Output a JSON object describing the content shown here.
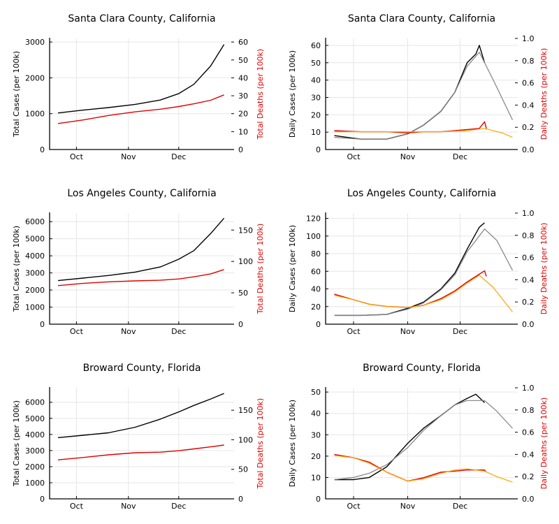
{
  "chart_data": [
    {
      "type": "line",
      "title": "Santa Clara County, California",
      "ylabel": "Total Cases (per 100k)",
      "ylabel2": "Total Deaths (per 100k)",
      "x_ticks": [
        "Oct",
        "Nov",
        "Dec"
      ],
      "y_ticks": [
        "0",
        "1000",
        "2000",
        "3000"
      ],
      "y2_ticks": [
        "0",
        "10",
        "20",
        "30",
        "40",
        "50",
        "60"
      ],
      "ylim": [
        0,
        3100
      ],
      "y2lim": [
        0,
        62
      ],
      "grid": true,
      "series": [
        {
          "axis": "left",
          "color": "#000000",
          "x": [
            "2020-09-20",
            "2020-10-05",
            "2020-10-20",
            "2020-11-05",
            "2020-11-20",
            "2020-12-01",
            "2020-12-10",
            "2020-12-20",
            "2020-12-28"
          ],
          "values": [
            1020,
            1100,
            1170,
            1260,
            1380,
            1560,
            1820,
            2330,
            2930
          ]
        },
        {
          "axis": "right",
          "color": "#e00000",
          "x": [
            "2020-09-20",
            "2020-10-05",
            "2020-10-20",
            "2020-11-05",
            "2020-11-20",
            "2020-12-01",
            "2020-12-10",
            "2020-12-20",
            "2020-12-28"
          ],
          "values": [
            14.5,
            16.5,
            19,
            21,
            22.5,
            24,
            25.5,
            27.5,
            30.5
          ]
        }
      ]
    },
    {
      "type": "line",
      "title": "Santa Clara County, California",
      "ylabel": "Daily Cases (per 100k)",
      "ylabel2": "Daily Deaths (per 100k)",
      "x_ticks": [
        "Oct",
        "Nov",
        "Dec"
      ],
      "y_ticks": [
        "0",
        "10",
        "20",
        "30",
        "40",
        "50",
        "60"
      ],
      "y2_ticks": [
        "0.0",
        "0.2",
        "0.4",
        "0.6",
        "0.8",
        "1.0"
      ],
      "ylim": [
        0,
        64
      ],
      "y2lim": [
        0,
        1.0
      ],
      "grid": true,
      "series": [
        {
          "axis": "left",
          "color": "#000000",
          "x": [
            "2020-09-20",
            "2020-10-05",
            "2020-10-20",
            "2020-11-01",
            "2020-11-10",
            "2020-11-20",
            "2020-11-28",
            "2020-12-05",
            "2020-12-10",
            "2020-12-12",
            "2020-12-15"
          ],
          "values": [
            8,
            6,
            6,
            9,
            14,
            22,
            33,
            50,
            55,
            60,
            50
          ]
        },
        {
          "axis": "left",
          "color": "#808080",
          "x": [
            "2020-09-20",
            "2020-10-05",
            "2020-10-20",
            "2020-11-01",
            "2020-11-10",
            "2020-11-20",
            "2020-11-28",
            "2020-12-05",
            "2020-12-12",
            "2020-12-20",
            "2020-12-31"
          ],
          "values": [
            7,
            6,
            6,
            9,
            14,
            22,
            33,
            48,
            56,
            40,
            17
          ]
        },
        {
          "axis": "right",
          "color": "#e00000",
          "x": [
            "2020-09-20",
            "2020-10-05",
            "2020-10-20",
            "2020-11-01",
            "2020-11-10",
            "2020-11-20",
            "2020-11-28",
            "2020-12-05",
            "2020-12-12",
            "2020-12-15",
            "2020-12-16"
          ],
          "values": [
            0.17,
            0.16,
            0.16,
            0.15,
            0.16,
            0.16,
            0.17,
            0.18,
            0.19,
            0.25,
            0.19
          ]
        },
        {
          "axis": "right",
          "color": "#ffa500",
          "x": [
            "2020-09-20",
            "2020-10-05",
            "2020-10-20",
            "2020-11-01",
            "2020-11-20",
            "2020-12-05",
            "2020-12-15",
            "2020-12-25",
            "2020-12-31"
          ],
          "values": [
            0.16,
            0.16,
            0.16,
            0.16,
            0.16,
            0.17,
            0.19,
            0.15,
            0.11
          ]
        }
      ]
    },
    {
      "type": "line",
      "title": "Los Angeles County, California",
      "ylabel": "Total Cases (per 100k)",
      "ylabel2": "Total Deaths (per 100k)",
      "x_ticks": [
        "Oct",
        "Nov",
        "Dec"
      ],
      "y_ticks": [
        "0",
        "1000",
        "2000",
        "3000",
        "4000",
        "5000",
        "6000"
      ],
      "y2_ticks": [
        "0",
        "50",
        "100",
        "150"
      ],
      "ylim": [
        0,
        6500
      ],
      "y2lim": [
        0,
        177
      ],
      "grid": true,
      "series": [
        {
          "axis": "left",
          "color": "#000000",
          "x": [
            "2020-09-20",
            "2020-10-05",
            "2020-10-20",
            "2020-11-05",
            "2020-11-20",
            "2020-12-01",
            "2020-12-10",
            "2020-12-20",
            "2020-12-28"
          ],
          "values": [
            2550,
            2700,
            2850,
            3050,
            3350,
            3800,
            4300,
            5300,
            6200
          ]
        },
        {
          "axis": "right",
          "color": "#e00000",
          "x": [
            "2020-09-20",
            "2020-10-05",
            "2020-10-20",
            "2020-11-05",
            "2020-11-20",
            "2020-12-01",
            "2020-12-10",
            "2020-12-20",
            "2020-12-28"
          ],
          "values": [
            61.5,
            65,
            67.5,
            69,
            70,
            72,
            75.5,
            80,
            87
          ]
        }
      ]
    },
    {
      "type": "line",
      "title": "Los Angeles County, California",
      "ylabel": "Daily Cases (per 100k)",
      "ylabel2": "Daily Deaths (per 100k)",
      "x_ticks": [
        "Oct",
        "Nov",
        "Dec"
      ],
      "y_ticks": [
        "0",
        "20",
        "40",
        "60",
        "80",
        "100",
        "120"
      ],
      "y2_ticks": [
        "0.0",
        "0.2",
        "0.4",
        "0.6",
        "0.8",
        "1.0"
      ],
      "ylim": [
        0,
        126
      ],
      "y2lim": [
        0,
        1.0
      ],
      "grid": true,
      "series": [
        {
          "axis": "left",
          "color": "#000000",
          "x": [
            "2020-09-20",
            "2020-10-05",
            "2020-10-20",
            "2020-11-01",
            "2020-11-10",
            "2020-11-20",
            "2020-11-28",
            "2020-12-05",
            "2020-12-12",
            "2020-12-15"
          ],
          "values": [
            10,
            10,
            11,
            18,
            25,
            40,
            58,
            85,
            110,
            115
          ]
        },
        {
          "axis": "left",
          "color": "#808080",
          "x": [
            "2020-09-20",
            "2020-10-05",
            "2020-10-20",
            "2020-11-01",
            "2020-11-10",
            "2020-11-20",
            "2020-11-28",
            "2020-12-05",
            "2020-12-15",
            "2020-12-22",
            "2020-12-31"
          ],
          "values": [
            10,
            10,
            11,
            17,
            24,
            39,
            56,
            82,
            108,
            95,
            61
          ]
        },
        {
          "axis": "right",
          "color": "#e00000",
          "x": [
            "2020-09-20",
            "2020-10-01",
            "2020-10-10",
            "2020-10-20",
            "2020-11-01",
            "2020-11-10",
            "2020-11-20",
            "2020-11-28",
            "2020-12-05",
            "2020-12-12",
            "2020-12-15",
            "2020-12-16"
          ],
          "values": [
            0.27,
            0.22,
            0.18,
            0.16,
            0.15,
            0.17,
            0.23,
            0.3,
            0.38,
            0.45,
            0.48,
            0.43
          ]
        },
        {
          "axis": "right",
          "color": "#ffa500",
          "x": [
            "2020-09-20",
            "2020-10-01",
            "2020-10-10",
            "2020-10-20",
            "2020-11-01",
            "2020-11-10",
            "2020-11-20",
            "2020-11-28",
            "2020-12-05",
            "2020-12-12",
            "2020-12-20",
            "2020-12-31"
          ],
          "values": [
            0.26,
            0.22,
            0.18,
            0.16,
            0.15,
            0.17,
            0.22,
            0.29,
            0.37,
            0.44,
            0.33,
            0.11
          ]
        }
      ]
    },
    {
      "type": "line",
      "title": "Broward County, Florida",
      "ylabel": "Total Cases (per 100k)",
      "ylabel2": "Total Deaths (per 100k)",
      "x_ticks": [
        "Oct",
        "Nov",
        "Dec"
      ],
      "y_ticks": [
        "0",
        "1000",
        "2000",
        "3000",
        "4000",
        "5000",
        "6000"
      ],
      "y2_ticks": [
        "0",
        "50",
        "100",
        "150"
      ],
      "ylim": [
        0,
        6900
      ],
      "y2lim": [
        0,
        188
      ],
      "grid": true,
      "series": [
        {
          "axis": "left",
          "color": "#000000",
          "x": [
            "2020-09-20",
            "2020-10-05",
            "2020-10-20",
            "2020-11-05",
            "2020-11-20",
            "2020-12-01",
            "2020-12-10",
            "2020-12-20",
            "2020-12-28"
          ],
          "values": [
            3800,
            3950,
            4100,
            4450,
            4950,
            5400,
            5800,
            6200,
            6550
          ]
        },
        {
          "axis": "right",
          "color": "#e00000",
          "x": [
            "2020-09-20",
            "2020-10-05",
            "2020-10-20",
            "2020-11-05",
            "2020-11-20",
            "2020-12-01",
            "2020-12-10",
            "2020-12-20",
            "2020-12-28"
          ],
          "values": [
            66,
            70,
            74.5,
            78,
            79,
            81.5,
            84.5,
            88,
            91
          ]
        }
      ]
    },
    {
      "type": "line",
      "title": "Broward County, Florida",
      "ylabel": "Daily Cases (per 100k)",
      "ylabel2": "Daily Deaths (per 100k)",
      "x_ticks": [
        "Oct",
        "Nov",
        "Dec"
      ],
      "y_ticks": [
        "0",
        "10",
        "20",
        "30",
        "40",
        "50"
      ],
      "y2_ticks": [
        "0.0",
        "0.2",
        "0.4",
        "0.6",
        "0.8",
        "1.0"
      ],
      "ylim": [
        0,
        52
      ],
      "y2lim": [
        0,
        1.0
      ],
      "grid": true,
      "series": [
        {
          "axis": "left",
          "color": "#000000",
          "x": [
            "2020-09-20",
            "2020-10-01",
            "2020-10-10",
            "2020-10-20",
            "2020-11-01",
            "2020-11-10",
            "2020-11-20",
            "2020-11-28",
            "2020-12-05",
            "2020-12-10",
            "2020-12-15"
          ],
          "values": [
            9,
            9,
            10,
            15,
            26,
            33,
            39,
            44,
            47,
            49,
            45
          ]
        },
        {
          "axis": "left",
          "color": "#808080",
          "x": [
            "2020-09-20",
            "2020-10-01",
            "2020-10-10",
            "2020-10-20",
            "2020-11-01",
            "2020-11-10",
            "2020-11-20",
            "2020-11-28",
            "2020-12-05",
            "2020-12-15",
            "2020-12-22",
            "2020-12-31"
          ],
          "values": [
            9,
            10,
            12,
            16,
            24,
            32,
            39,
            44,
            46,
            46,
            41,
            33
          ]
        },
        {
          "axis": "right",
          "color": "#e00000",
          "x": [
            "2020-09-20",
            "2020-10-01",
            "2020-10-10",
            "2020-10-20",
            "2020-11-01",
            "2020-11-10",
            "2020-11-20",
            "2020-11-28",
            "2020-12-05",
            "2020-12-15",
            "2020-12-16"
          ],
          "values": [
            0.4,
            0.37,
            0.33,
            0.24,
            0.16,
            0.19,
            0.24,
            0.25,
            0.26,
            0.26,
            0.24
          ]
        },
        {
          "axis": "right",
          "color": "#ffa500",
          "x": [
            "2020-09-20",
            "2020-10-01",
            "2020-10-10",
            "2020-10-20",
            "2020-11-01",
            "2020-11-10",
            "2020-11-20",
            "2020-11-28",
            "2020-12-05",
            "2020-12-15",
            "2020-12-22",
            "2020-12-31"
          ],
          "values": [
            0.39,
            0.37,
            0.32,
            0.24,
            0.16,
            0.18,
            0.23,
            0.26,
            0.27,
            0.25,
            0.2,
            0.15
          ]
        }
      ]
    }
  ]
}
